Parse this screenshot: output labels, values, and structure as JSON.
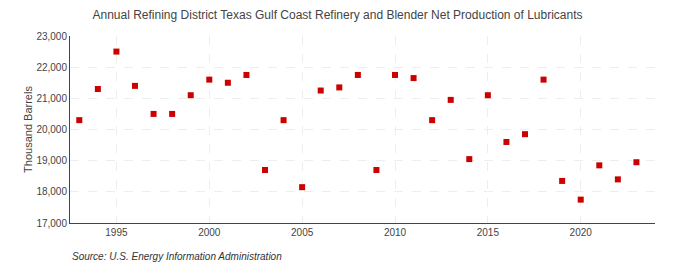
{
  "chart_data": {
    "type": "scatter",
    "title": "Annual Refining District Texas Gulf Coast Refinery and Blender Net Production of Lubricants",
    "ylabel": "Thousand Barrels",
    "source": "Source: U.S. Energy Information Administration",
    "x": [
      1993,
      1994,
      1995,
      1996,
      1997,
      1998,
      1999,
      2000,
      2001,
      2002,
      2003,
      2004,
      2005,
      2006,
      2007,
      2008,
      2009,
      2010,
      2011,
      2012,
      2013,
      2014,
      2015,
      2016,
      2017,
      2018,
      2019,
      2020,
      2021,
      2022,
      2023
    ],
    "values": [
      20300,
      21300,
      22500,
      21400,
      20500,
      20500,
      21100,
      21600,
      21500,
      21750,
      18700,
      20300,
      18150,
      21250,
      21350,
      21750,
      18700,
      21750,
      21650,
      20300,
      20950,
      19050,
      21100,
      19600,
      19850,
      21600,
      18350,
      17750,
      18850,
      18400,
      18950
    ],
    "color": "#cc0000",
    "marker": "square",
    "xlim": [
      1992.5,
      2024
    ],
    "xticks": [
      1995,
      2000,
      2005,
      2010,
      2015,
      2020
    ],
    "ylim": [
      17000,
      23000
    ],
    "yticks": [
      {
        "value": 17000,
        "label": "17,000"
      },
      {
        "value": 18000,
        "label": "18,000"
      },
      {
        "value": 19000,
        "label": "19,000"
      },
      {
        "value": 20000,
        "label": "20,000"
      },
      {
        "value": 21000,
        "label": "21,000"
      },
      {
        "value": 22000,
        "label": "22,000"
      },
      {
        "value": 23000,
        "label": "23,000"
      }
    ],
    "grid": true
  }
}
